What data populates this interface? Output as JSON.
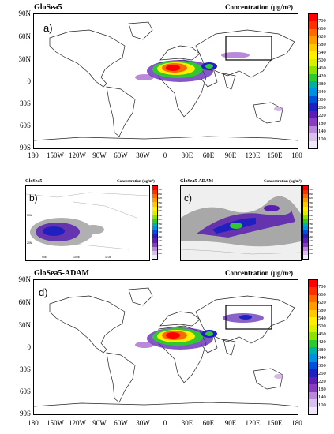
{
  "panel_a": {
    "model": "GloSea5",
    "letter": "a)",
    "conc_label": "Concentration (μg/m³)"
  },
  "panel_b": {
    "model": "GloSea5",
    "letter": "b)",
    "conc_label": "Concentration (μg/m³)"
  },
  "panel_c": {
    "model": "GloSea5-ADAM",
    "letter": "c)",
    "conc_label": "Concentration (μg/m³)"
  },
  "panel_d": {
    "model": "GloSea5-ADAM",
    "letter": "d)",
    "conc_label": "Concentration (μg/m³)"
  },
  "lat_ticks": [
    "90N",
    "60N",
    "30N",
    "0",
    "30S",
    "60S",
    "90S"
  ],
  "lon_ticks": [
    "180",
    "150W",
    "120W",
    "90W",
    "60W",
    "30W",
    "0",
    "30E",
    "60E",
    "90E",
    "120E",
    "150E",
    "180"
  ],
  "colorbar": {
    "labels": [
      "700",
      "660",
      "620",
      "580",
      "540",
      "500",
      "460",
      "420",
      "380",
      "340",
      "300",
      "260",
      "220",
      "180",
      "140",
      "100"
    ],
    "colors": [
      "#ff0000",
      "#ff3000",
      "#ff6a00",
      "#ff9a00",
      "#ffc800",
      "#ffee00",
      "#d8f000",
      "#8ee000",
      "#30c830",
      "#00b0a0",
      "#0090e0",
      "#0050d8",
      "#2020c0",
      "#5a1fb0",
      "#8a3cc0",
      "#b888d8",
      "#d8c0ec",
      "#f0e8f8"
    ]
  },
  "small_colorbar": {
    "labels": [
      "700",
      "660",
      "620",
      "580",
      "540",
      "500",
      "460",
      "420",
      "380",
      "340",
      "300",
      "260",
      "220",
      "180",
      "140",
      "100"
    ]
  },
  "colors": {
    "frame": "#000000",
    "land": "#ffffff",
    "coast": "#222222"
  }
}
